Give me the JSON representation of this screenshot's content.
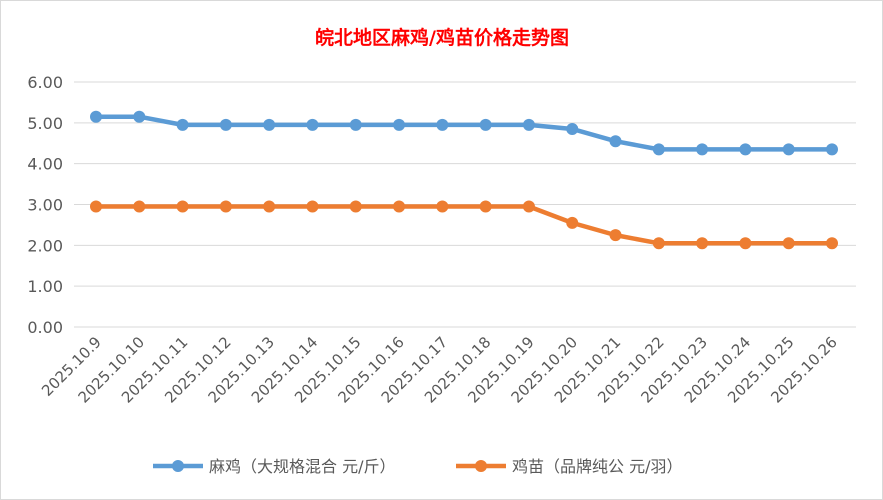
{
  "chart_data": {
    "type": "line",
    "title": "皖北地区麻鸡/鸡苗价格走势图",
    "xlabel": "",
    "ylabel": "",
    "categories": [
      "2025.10.9",
      "2025.10.10",
      "2025.10.11",
      "2025.10.12",
      "2025.10.13",
      "2025.10.14",
      "2025.10.15",
      "2025.10.16",
      "2025.10.17",
      "2025.10.18",
      "2025.10.19",
      "2025.10.20",
      "2025.10.21",
      "2025.10.22",
      "2025.10.23",
      "2025.10.24",
      "2025.10.25",
      "2025.10.26"
    ],
    "series": [
      {
        "name": "麻鸡（大规格混合 元/斤）",
        "color": "#5b9bd5",
        "values": [
          5.15,
          5.15,
          4.95,
          4.95,
          4.95,
          4.95,
          4.95,
          4.95,
          4.95,
          4.95,
          4.95,
          4.85,
          4.55,
          4.35,
          4.35,
          4.35,
          4.35,
          4.35
        ]
      },
      {
        "name": "鸡苗（品牌纯公 元/羽）",
        "color": "#ed7d31",
        "values": [
          2.95,
          2.95,
          2.95,
          2.95,
          2.95,
          2.95,
          2.95,
          2.95,
          2.95,
          2.95,
          2.95,
          2.55,
          2.25,
          2.05,
          2.05,
          2.05,
          2.05,
          2.05
        ]
      }
    ],
    "ylim": [
      0,
      6
    ],
    "yticks": [
      "0.00",
      "1.00",
      "2.00",
      "3.00",
      "4.00",
      "5.00",
      "6.00"
    ],
    "grid": true,
    "legend": "bottom",
    "title_color": "#ff0000"
  }
}
